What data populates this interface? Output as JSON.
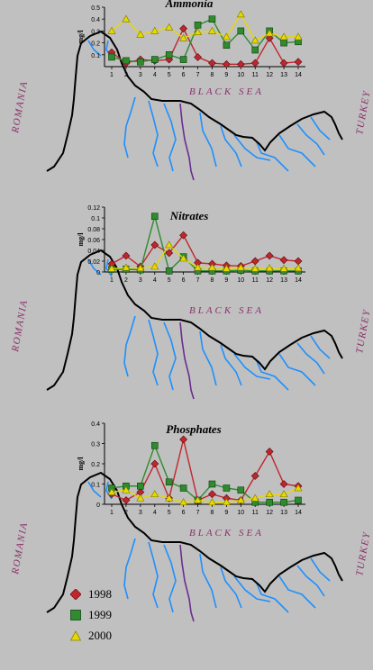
{
  "colors": {
    "background": "#c0c0c0",
    "coast": "#000000",
    "river": "#1e90ff",
    "river_purple": "#6a2c91",
    "label": "#8b2f6b",
    "s1998": "#c0262d",
    "s1999": "#2e8b2e",
    "s2000": "#e6d900"
  },
  "map_labels": {
    "romania": "ROMANIA",
    "black_sea": "BLACK SEA",
    "turkey": "TURKEY"
  },
  "legend": [
    {
      "label": "1998",
      "marker": "diamond",
      "color": "#c0262d"
    },
    {
      "label": "1999",
      "marker": "square",
      "color": "#2e8b2e"
    },
    {
      "label": "2000",
      "marker": "triangle",
      "color": "#e6d900"
    }
  ],
  "chart_data": [
    {
      "type": "line",
      "title": "Ammonia",
      "ylabel": "mg/l",
      "xlabel": "",
      "x": [
        1,
        2,
        3,
        4,
        5,
        6,
        7,
        8,
        9,
        10,
        11,
        12,
        13,
        14
      ],
      "xticks": [
        "1",
        "2",
        "3",
        "4",
        "5",
        "6",
        "7",
        "8",
        "9",
        "10",
        "11",
        "12",
        "13",
        "14"
      ],
      "ylim": [
        0,
        0.5
      ],
      "yticks": [
        "0.1",
        "0.2",
        "0.3",
        "0.4",
        "0.5"
      ],
      "series": [
        {
          "name": "1998",
          "values": [
            0.12,
            0.03,
            0.06,
            0.05,
            0.06,
            0.32,
            0.08,
            0.03,
            0.02,
            0.02,
            0.03,
            0.24,
            0.03,
            0.04
          ]
        },
        {
          "name": "1999",
          "values": [
            0.08,
            0.05,
            0.04,
            0.06,
            0.1,
            0.06,
            0.35,
            0.4,
            0.18,
            0.3,
            0.14,
            0.3,
            0.2,
            0.21
          ]
        },
        {
          "name": "2000",
          "values": [
            0.3,
            0.4,
            0.27,
            0.3,
            0.33,
            0.24,
            0.29,
            0.3,
            0.25,
            0.44,
            0.22,
            0.28,
            0.25,
            0.25
          ]
        }
      ]
    },
    {
      "type": "line",
      "title": "Nitrates",
      "ylabel": "mg/l",
      "xlabel": "",
      "x": [
        1,
        2,
        3,
        4,
        5,
        6,
        7,
        8,
        9,
        10,
        11,
        12,
        13,
        14
      ],
      "xticks": [
        "1",
        "2",
        "3",
        "4",
        "5",
        "6",
        "7",
        "8",
        "9",
        "10",
        "11",
        "12",
        "13",
        "14"
      ],
      "ylim": [
        0,
        0.12
      ],
      "yticks": [
        "0",
        "0.02",
        "0.04",
        "0.06",
        "0.08",
        "0.1",
        "0.12"
      ],
      "series": [
        {
          "name": "1998",
          "values": [
            0.015,
            0.03,
            0.01,
            0.05,
            0.035,
            0.068,
            0.017,
            0.015,
            0.012,
            0.011,
            0.02,
            0.03,
            0.022,
            0.02
          ]
        },
        {
          "name": "1999",
          "values": [
            0.005,
            0.005,
            0.004,
            0.103,
            0.002,
            0.028,
            0.002,
            0.002,
            0.002,
            0.003,
            0.002,
            0.002,
            0.002,
            0.002
          ]
        },
        {
          "name": "2000",
          "values": [
            0.006,
            0.008,
            0.007,
            0.01,
            0.05,
            0.025,
            0.008,
            0.008,
            0.006,
            0.008,
            0.006,
            0.007,
            0.006,
            0.007
          ]
        }
      ]
    },
    {
      "type": "line",
      "title": "Phosphates",
      "ylabel": "mg/l",
      "xlabel": "",
      "x": [
        1,
        2,
        3,
        4,
        5,
        6,
        7,
        8,
        9,
        10,
        11,
        12,
        13,
        14
      ],
      "xticks": [
        "1",
        "2",
        "3",
        "4",
        "5",
        "6",
        "7",
        "8",
        "9",
        "10",
        "11",
        "12",
        "13",
        "14"
      ],
      "ylim": [
        0,
        0.4
      ],
      "yticks": [
        "0",
        "0.1",
        "0.2",
        "0.3",
        "0.4"
      ],
      "series": [
        {
          "name": "1998",
          "values": [
            0.05,
            0.02,
            0.06,
            0.2,
            0.03,
            0.32,
            0.02,
            0.05,
            0.03,
            0.02,
            0.14,
            0.26,
            0.1,
            0.09
          ]
        },
        {
          "name": "1999",
          "values": [
            0.08,
            0.09,
            0.09,
            0.29,
            0.11,
            0.08,
            0.02,
            0.1,
            0.08,
            0.07,
            0.01,
            0.01,
            0.01,
            0.02
          ]
        },
        {
          "name": "2000",
          "values": [
            0.06,
            0.07,
            0.03,
            0.05,
            0.03,
            0.01,
            0.02,
            0.01,
            0.01,
            0.02,
            0.03,
            0.05,
            0.05,
            0.08
          ]
        }
      ]
    }
  ]
}
